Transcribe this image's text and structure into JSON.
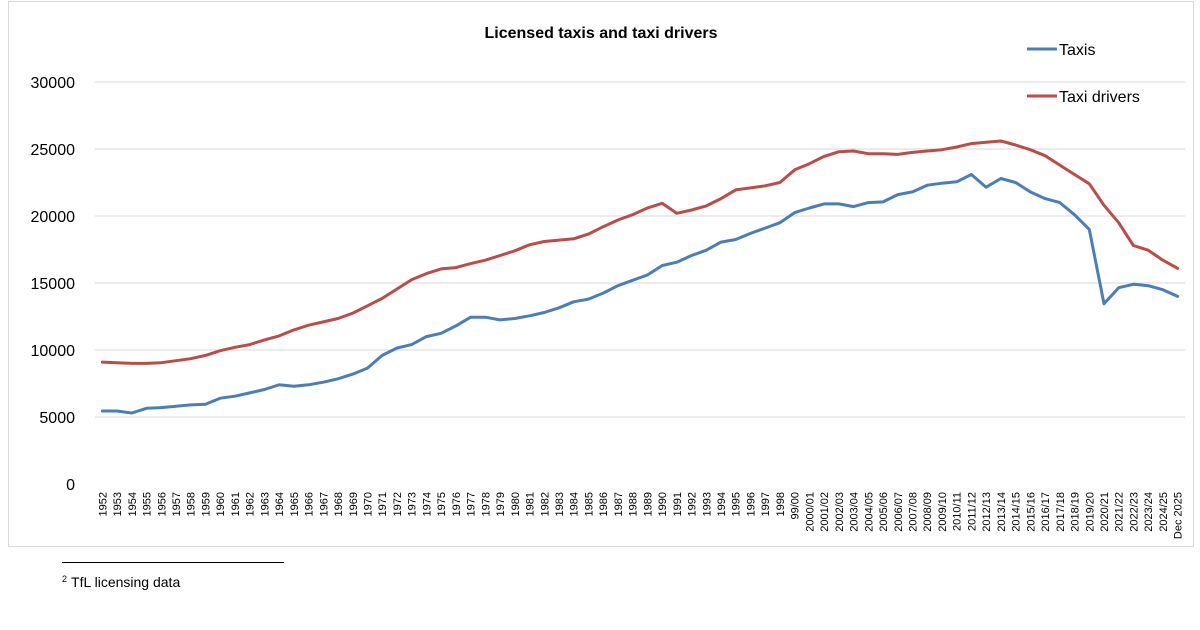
{
  "chart_data": {
    "type": "line",
    "title": "Licensed taxis and taxi drivers",
    "xlabel": "",
    "ylabel": "",
    "ylim": [
      0,
      30000
    ],
    "yticks": [
      0,
      5000,
      10000,
      15000,
      20000,
      25000,
      30000
    ],
    "grid": true,
    "legend_position": "top-right",
    "categories": [
      "1952",
      "1953",
      "1954",
      "1955",
      "1956",
      "1957",
      "1958",
      "1959",
      "1960",
      "1961",
      "1962",
      "1963",
      "1964",
      "1965",
      "1966",
      "1967",
      "1968",
      "1969",
      "1970",
      "1971",
      "1972",
      "1973",
      "1974",
      "1975",
      "1976",
      "1977",
      "1978",
      "1979",
      "1980",
      "1981",
      "1982",
      "1983",
      "1984",
      "1985",
      "1986",
      "1987",
      "1988",
      "1989",
      "1990",
      "1991",
      "1992",
      "1993",
      "1994",
      "1995",
      "1996",
      "1997",
      "1998",
      "99/00",
      "2000/01",
      "2001/02",
      "2002/03",
      "2003/04",
      "2004/05",
      "2005/06",
      "2006/07",
      "2007/08",
      "2008/09",
      "2009/10",
      "2010/11",
      "2011/12",
      "2012/13",
      "2013/14",
      "2014/15",
      "2015/16",
      "2016/17",
      "2017/18",
      "2018/19",
      "2019/20",
      "2020/21",
      "2021/22",
      "2022/23",
      "2023/24",
      "2024/25",
      "Dec 2025"
    ],
    "series": [
      {
        "name": "Taxis",
        "color": "#4a7ebb",
        "values": [
          5450,
          5450,
          5300,
          5650,
          5700,
          5800,
          5900,
          5950,
          6400,
          6550,
          6800,
          7050,
          7400,
          7300,
          7400,
          7600,
          7850,
          8200,
          8650,
          9600,
          10150,
          10400,
          11000,
          11250,
          11800,
          12450,
          12450,
          12250,
          12350,
          12550,
          12800,
          13150,
          13600,
          13800,
          14250,
          14800,
          15200,
          15600,
          16300,
          16550,
          17050,
          17450,
          18050,
          18250,
          18700,
          19100,
          19500,
          20250,
          20600,
          20900,
          20900,
          20700,
          21000,
          21050,
          21600,
          21800,
          22300,
          22450,
          22550,
          23100,
          22150,
          22800,
          22500,
          21800,
          21300,
          21000,
          20100,
          19000,
          13450,
          14650,
          14900,
          14800,
          14500,
          14000
        ]
      },
      {
        "name": "Taxi drivers",
        "color": "#be4b48",
        "values": [
          9100,
          9050,
          9000,
          9000,
          9050,
          9200,
          9350,
          9600,
          9950,
          10200,
          10400,
          10750,
          11050,
          11500,
          11850,
          12100,
          12350,
          12750,
          13300,
          13850,
          14550,
          15250,
          15700,
          16050,
          16150,
          16450,
          16700,
          17050,
          17400,
          17850,
          18100,
          18200,
          18300,
          18650,
          19200,
          19700,
          20100,
          20600,
          20950,
          20200,
          20450,
          20750,
          21300,
          21950,
          22100,
          22250,
          22500,
          23450,
          23900,
          24450,
          24800,
          24850,
          24650,
          24650,
          24600,
          24750,
          24850,
          24950,
          25150,
          25400,
          25500,
          25600,
          25300,
          24950,
          24500,
          23800,
          23100,
          22400,
          20800,
          19500,
          17800,
          17450,
          16700,
          16100
        ]
      }
    ]
  },
  "footnote": {
    "marker": "2",
    "text": "TfL licensing data"
  }
}
